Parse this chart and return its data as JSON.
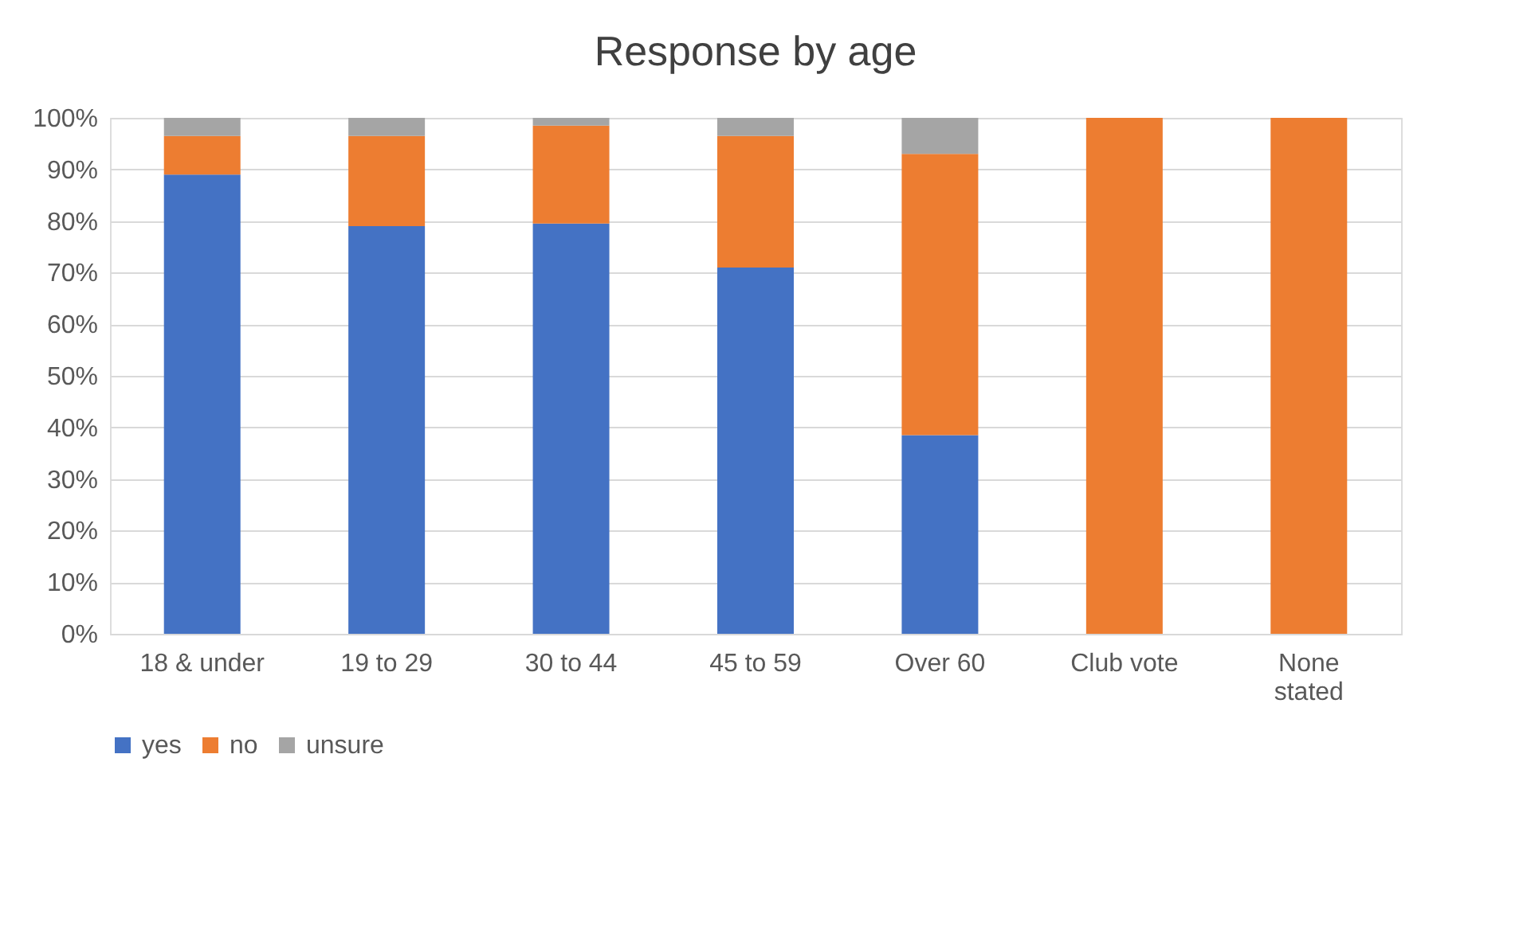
{
  "chart_data": {
    "type": "bar",
    "title": "Response by age",
    "stacked": true,
    "categories": [
      "18 & under",
      "19 to 29",
      "30 to 44",
      "45 to 59",
      "Over 60",
      "Club vote",
      "None stated"
    ],
    "series": [
      {
        "name": "yes",
        "color": "#4472c4",
        "values": [
          89,
          79,
          79.5,
          71,
          38.5,
          0,
          0
        ]
      },
      {
        "name": "no",
        "color": "#ed7d31",
        "values": [
          7.5,
          17.5,
          19,
          25.5,
          54.5,
          100,
          100
        ]
      },
      {
        "name": "unsure",
        "color": "#a5a5a5",
        "values": [
          3.5,
          3.5,
          1.5,
          3.5,
          7,
          0,
          0
        ]
      }
    ],
    "ylim": [
      0,
      100
    ],
    "yticks": [
      {
        "value": 0,
        "label": "0%"
      },
      {
        "value": 10,
        "label": "10%"
      },
      {
        "value": 20,
        "label": "20%"
      },
      {
        "value": 30,
        "label": "30%"
      },
      {
        "value": 40,
        "label": "40%"
      },
      {
        "value": 50,
        "label": "50%"
      },
      {
        "value": 60,
        "label": "60%"
      },
      {
        "value": 70,
        "label": "70%"
      },
      {
        "value": 80,
        "label": "80%"
      },
      {
        "value": 90,
        "label": "90%"
      },
      {
        "value": 100,
        "label": "100%"
      }
    ],
    "grid": "y",
    "legend": "bottom"
  }
}
